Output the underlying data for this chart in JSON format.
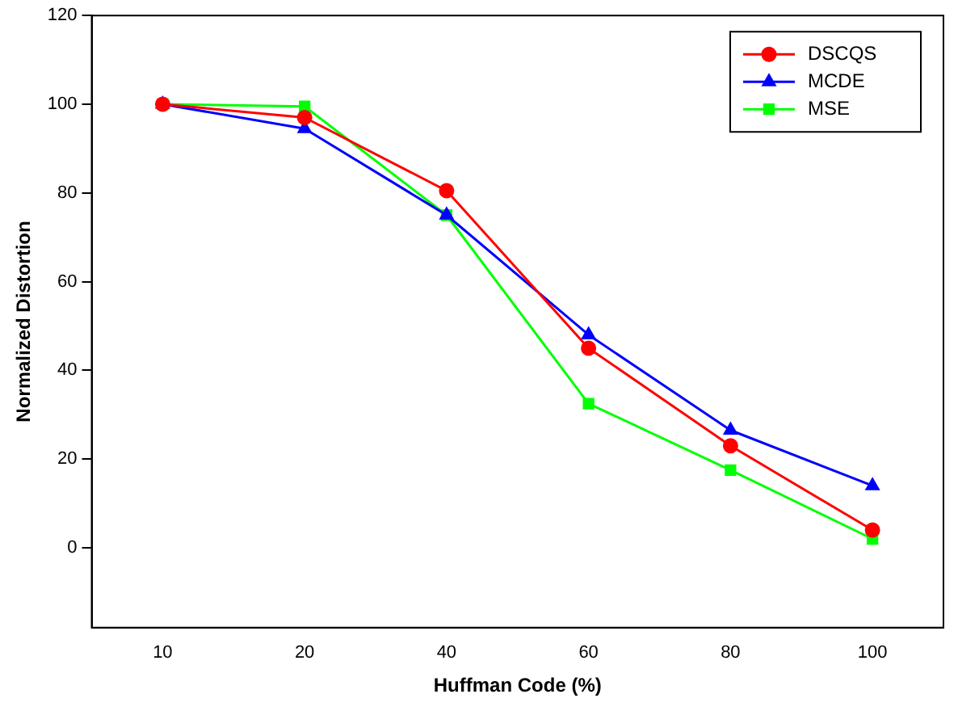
{
  "chart_data": {
    "type": "line",
    "xlabel": "Huffman Code (%)",
    "ylabel": "Normalized Distortion",
    "categories": [
      "10",
      "20",
      "40",
      "60",
      "80",
      "100"
    ],
    "ylim": [
      -18,
      120
    ],
    "yticks": [
      0,
      20,
      40,
      60,
      80,
      100,
      120
    ],
    "grid": false,
    "legend": "top right",
    "line_style": "solid",
    "series": [
      {
        "name": "DSCQS",
        "color": "#ff0000",
        "marker": "circle",
        "values": [
          100,
          97,
          80.5,
          45,
          23,
          4
        ]
      },
      {
        "name": "MCDE",
        "color": "#0000ff",
        "marker": "triangle",
        "values": [
          100,
          94.5,
          75,
          48,
          26.5,
          14
        ]
      },
      {
        "name": "MSE",
        "color": "#00ff00",
        "marker": "square",
        "values": [
          100,
          99.5,
          75,
          32.5,
          17.5,
          2
        ]
      }
    ]
  }
}
